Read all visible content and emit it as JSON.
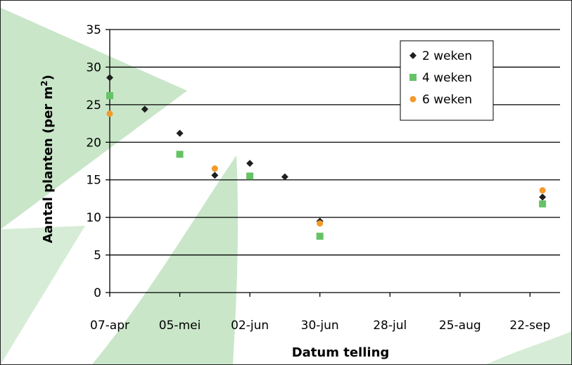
{
  "chart_data": {
    "type": "scatter",
    "title": "",
    "xlabel": "Datum telling",
    "ylabel_prefix": "Aantal planten (per m",
    "ylabel_sup": "2",
    "ylabel_suffix": ")",
    "x_tick_labels": [
      "07-apr",
      "05-mei",
      "02-jun",
      "30-jun",
      "28-jul",
      "25-aug",
      "22-sep"
    ],
    "y_ticks": [
      0,
      5,
      10,
      15,
      20,
      25,
      30,
      35
    ],
    "ylim": [
      0,
      35
    ],
    "xlim_days": [
      0,
      180
    ],
    "grid": "horizontal",
    "legend_position": "top-right",
    "series": [
      {
        "name": "2 weken",
        "marker": "diamond",
        "color": "#1f1f1f",
        "points": [
          {
            "x": "07-apr",
            "y": 28.6
          },
          {
            "x": "21-apr",
            "y": 24.4
          },
          {
            "x": "05-mei",
            "y": 21.2
          },
          {
            "x": "19-mei",
            "y": 15.6
          },
          {
            "x": "02-jun",
            "y": 17.2
          },
          {
            "x": "16-jun",
            "y": 15.4
          },
          {
            "x": "30-jun",
            "y": 9.5
          },
          {
            "x": "27-sep",
            "y": 12.7
          }
        ]
      },
      {
        "name": "4 weken",
        "marker": "square",
        "color": "#66c266",
        "points": [
          {
            "x": "07-apr",
            "y": 26.2
          },
          {
            "x": "05-mei",
            "y": 18.4
          },
          {
            "x": "02-jun",
            "y": 15.5
          },
          {
            "x": "30-jun",
            "y": 7.5
          },
          {
            "x": "27-sep",
            "y": 11.8
          }
        ]
      },
      {
        "name": "6 weken",
        "marker": "circle",
        "color": "#f39a2b",
        "points": [
          {
            "x": "07-apr",
            "y": 23.8
          },
          {
            "x": "19-mei",
            "y": 16.5
          },
          {
            "x": "30-jun",
            "y": 9.2
          },
          {
            "x": "27-sep",
            "y": 13.6
          }
        ]
      }
    ]
  },
  "colors": {
    "background_green": "#c9e6c9",
    "background_light": "#e5f3e5"
  }
}
